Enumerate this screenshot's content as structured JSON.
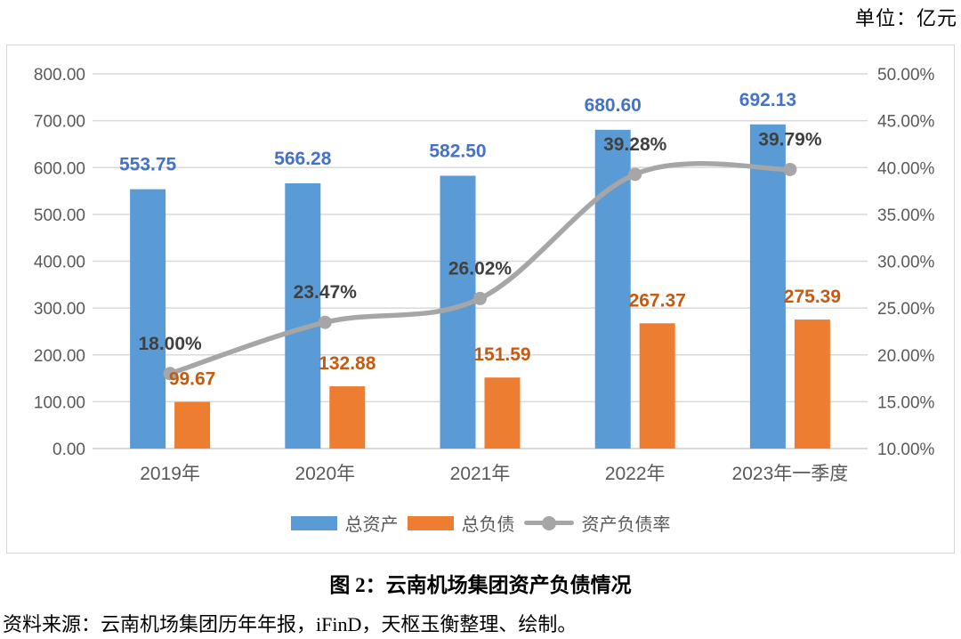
{
  "unit_label": "单位：亿元",
  "caption": {
    "title": "图 2：云南机场集团资产负债情况",
    "source": "资料来源：云南机场集团历年年报，iFinD，天枢玉衡整理、绘制。"
  },
  "chart_data": {
    "type": "bar",
    "subtype": "combo-bar-line",
    "categories": [
      "2019年",
      "2020年",
      "2021年",
      "2022年",
      "2023年一季度"
    ],
    "series": [
      {
        "name": "总资产",
        "type": "bar",
        "axis": "left",
        "color": "#5B9BD5",
        "label_color": "#4472C4",
        "values": [
          553.75,
          566.28,
          582.5,
          680.6,
          692.13
        ],
        "labels": [
          "553.75",
          "566.28",
          "582.50",
          "680.60",
          "692.13"
        ]
      },
      {
        "name": "总负债",
        "type": "bar",
        "axis": "left",
        "color": "#ED7D31",
        "label_color": "#C55A11",
        "values": [
          99.67,
          132.88,
          151.59,
          267.37,
          275.39
        ],
        "labels": [
          "99.67",
          "132.88",
          "151.59",
          "267.37",
          "275.39"
        ]
      },
      {
        "name": "资产负债率",
        "type": "line",
        "axis": "right",
        "color": "#A6A6A6",
        "label_color": "#404040",
        "smooth": true,
        "values": [
          18.0,
          23.47,
          26.02,
          39.28,
          39.79
        ],
        "labels": [
          "18.00%",
          "23.47%",
          "26.02%",
          "39.28%",
          "39.79%"
        ]
      }
    ],
    "left_axis": {
      "min": 0,
      "max": 800,
      "step": 100,
      "ticks": [
        "800.00",
        "700.00",
        "600.00",
        "500.00",
        "400.00",
        "300.00",
        "200.00",
        "100.00",
        "0.00"
      ]
    },
    "right_axis": {
      "min": 10,
      "max": 50,
      "step": 5,
      "ticks": [
        "50.00%",
        "45.00%",
        "40.00%",
        "35.00%",
        "30.00%",
        "25.00%",
        "20.00%",
        "15.00%",
        "10.00%"
      ]
    },
    "grid": true,
    "gridline_color": "#D9D9D9",
    "axis_text_color": "#595959",
    "legend_position": "bottom"
  }
}
